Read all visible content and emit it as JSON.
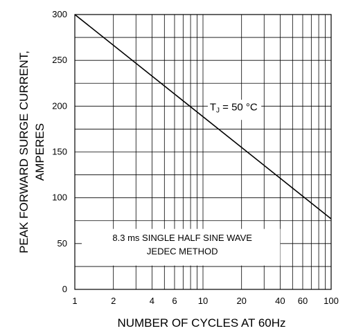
{
  "chart_data": {
    "type": "line",
    "xscale": "log",
    "xlim": [
      1,
      100
    ],
    "ylim": [
      0,
      300
    ],
    "xticks": [
      1,
      2,
      4,
      6,
      10,
      20,
      40,
      60,
      100
    ],
    "xtick_labels": [
      "1",
      "2",
      "4",
      "6",
      "10",
      "20",
      "40",
      "60",
      "100"
    ],
    "yticks": [
      0,
      50,
      100,
      150,
      200,
      250,
      300
    ],
    "ytick_labels": [
      "0",
      "50",
      "100",
      "150",
      "200",
      "250",
      "300"
    ],
    "xlabel": "NUMBER OF CYCLES AT 60Hz",
    "ylabel_line1": "PEAK FORWARD SURGE CURRENT,",
    "ylabel_line2": "AMPERES",
    "grid": true,
    "series": [
      {
        "x": [
          1,
          100
        ],
        "y": [
          300,
          77
        ]
      }
    ],
    "annotations": {
      "tj_prefix": "T",
      "tj_sub": "J",
      "tj_rest": " = 50 °C",
      "method_line1": "8.3 ms SINGLE HALF SINE WAVE",
      "method_line2": "JEDEC METHOD"
    }
  }
}
